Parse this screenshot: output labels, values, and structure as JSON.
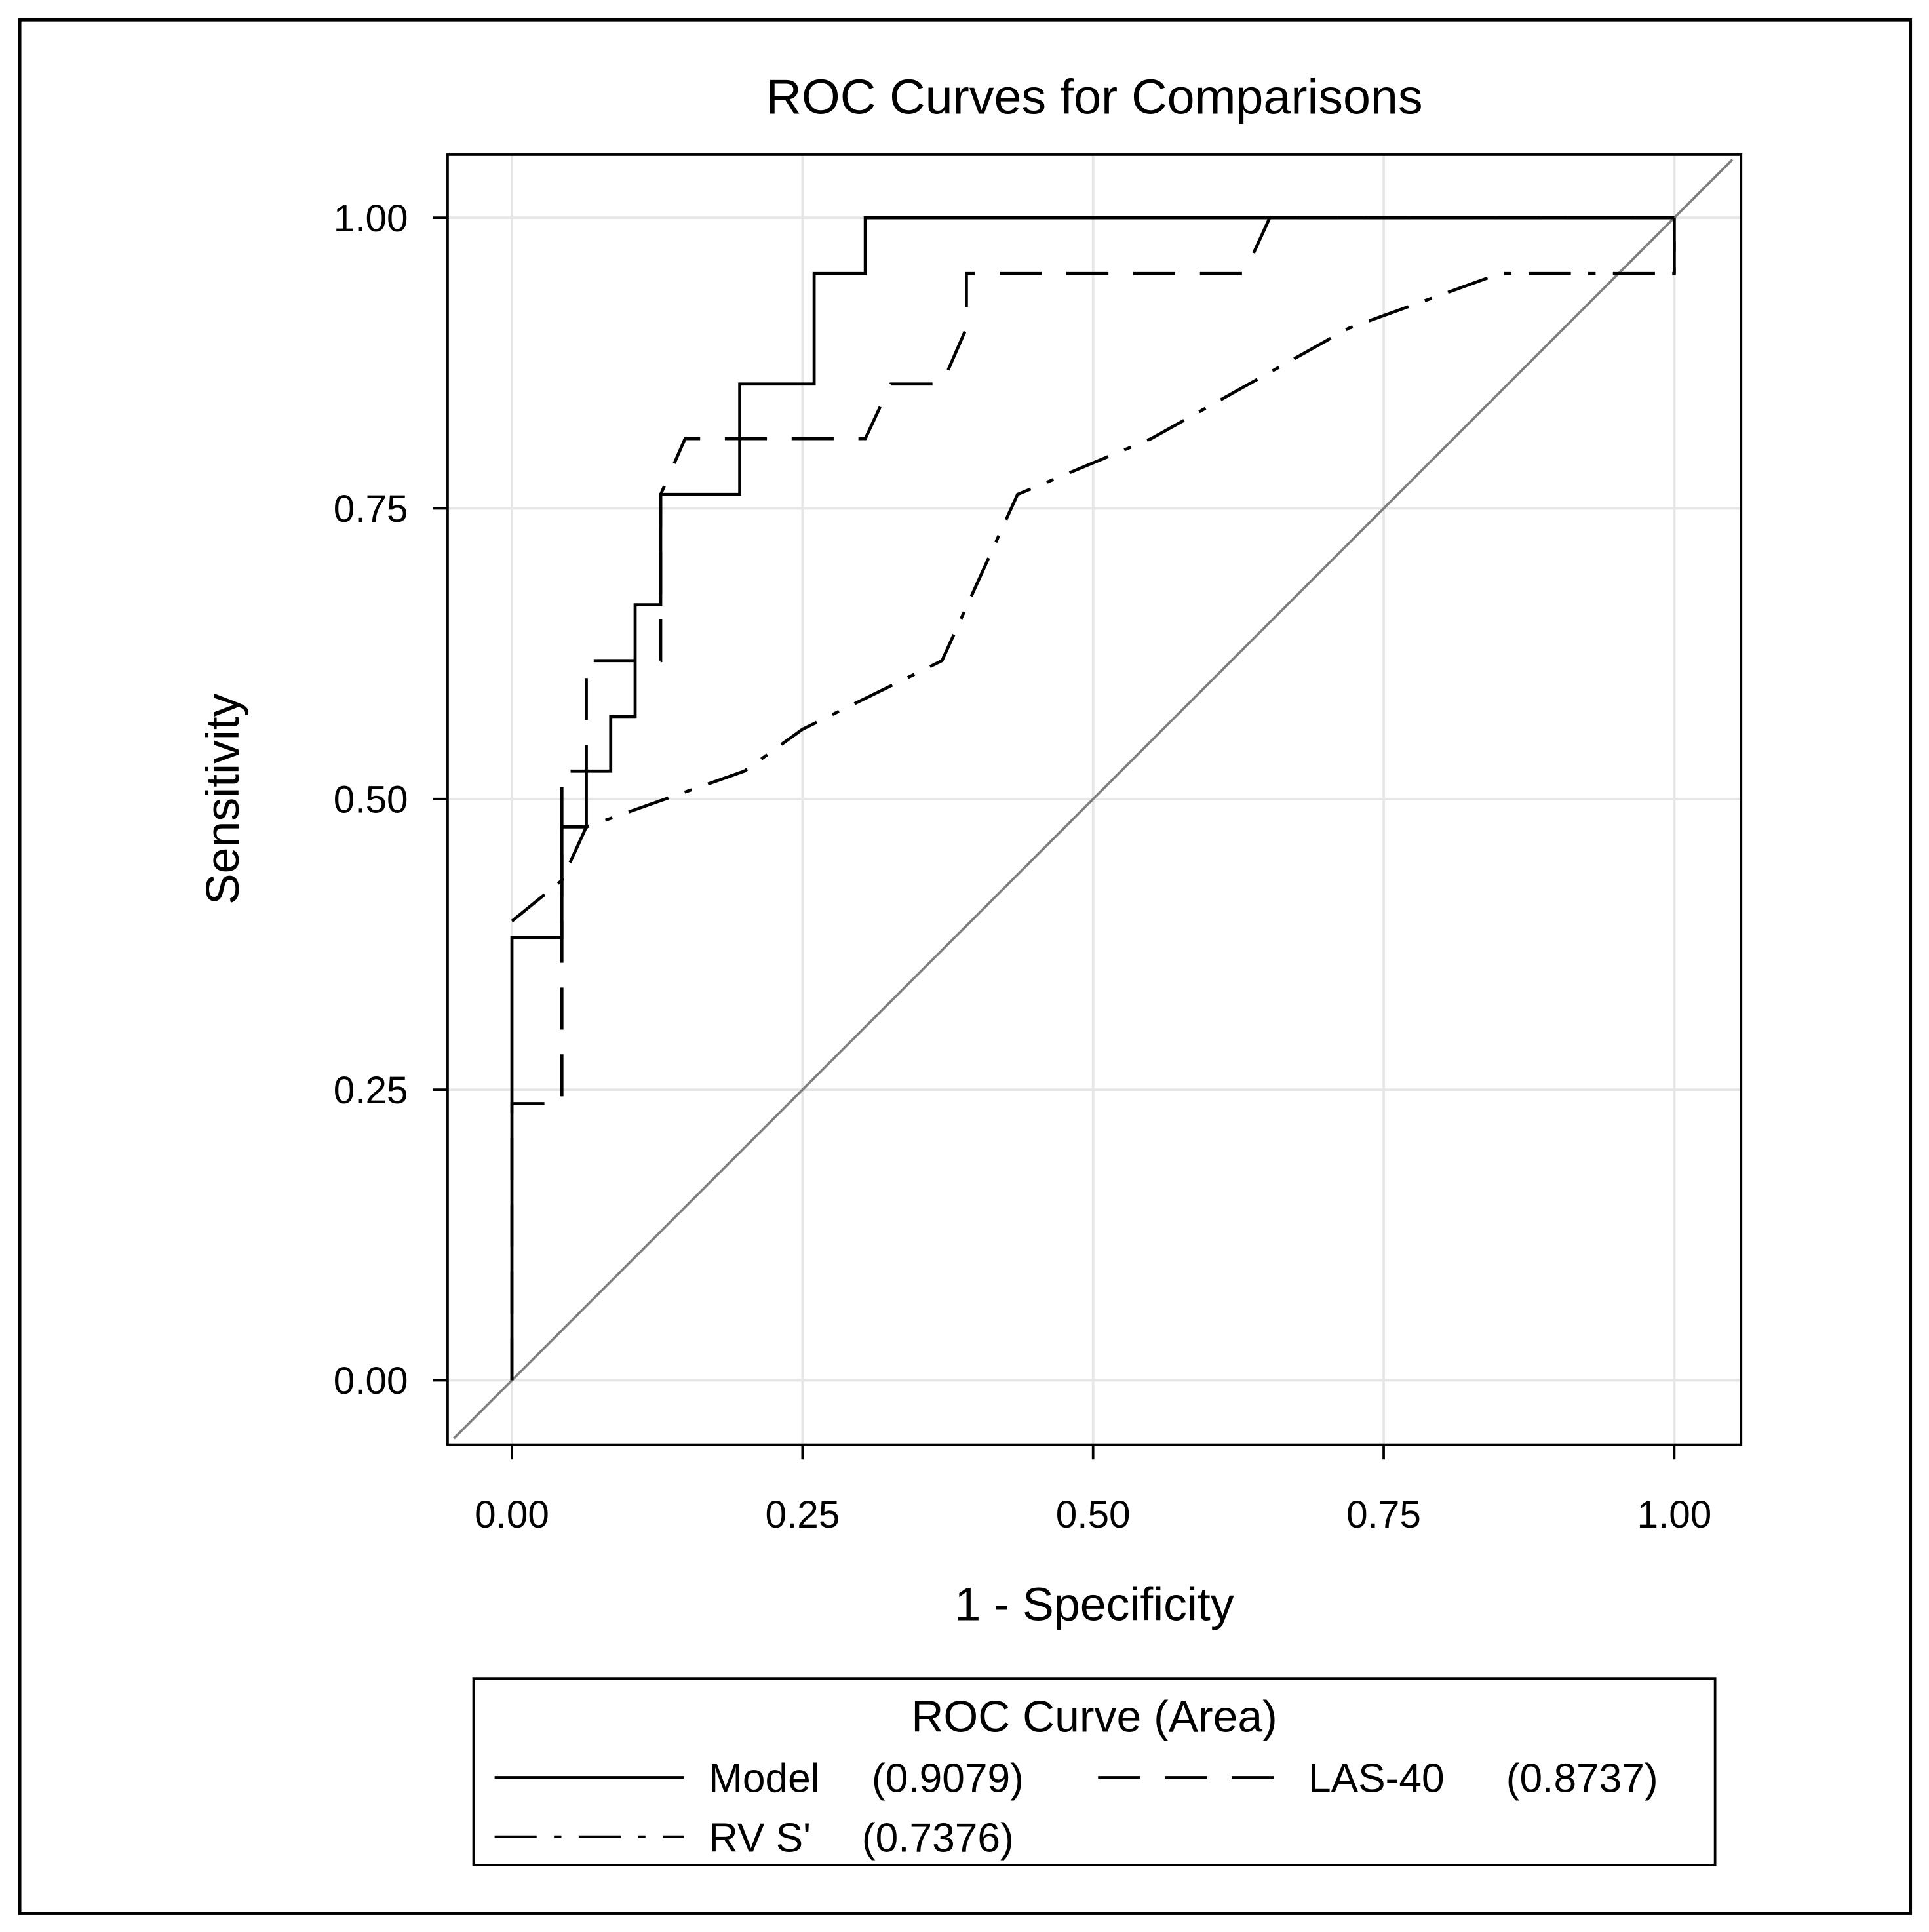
{
  "chart_data": {
    "type": "line",
    "title": "ROC Curves for Comparisons",
    "xlabel": "1 - Specificity",
    "ylabel": "Sensitivity",
    "xlim": [
      -0.05,
      1.05
    ],
    "ylim": [
      -0.05,
      1.05
    ],
    "xticks": [
      0,
      0.25,
      0.5,
      0.75,
      1
    ],
    "yticks": [
      0,
      0.25,
      0.5,
      0.75,
      1
    ],
    "xtick_labels": [
      "0.00",
      "0.25",
      "0.50",
      "0.75",
      "1.00"
    ],
    "ytick_labels": [
      "0.00",
      "0.25",
      "0.50",
      "0.75",
      "1.00"
    ],
    "grid": true,
    "legend": {
      "title": "ROC Curve (Area)",
      "placement": "bottom",
      "entries": [
        {
          "name": "Model",
          "area": "(0.9079)"
        },
        {
          "name": "LAS-40",
          "area": "(0.8737)"
        },
        {
          "name": "RV S'",
          "area": "(0.7376)"
        }
      ]
    },
    "reference_line": {
      "x": [
        0,
        1
      ],
      "y": [
        0,
        1
      ],
      "color": "#808080"
    },
    "series": [
      {
        "name": "Model",
        "style": "solid",
        "area": 0.9079,
        "x": [
          0,
          0,
          0.043,
          0.043,
          0.064,
          0.064,
          0.085,
          0.085,
          0.106,
          0.106,
          0.128,
          0.128,
          0.196,
          0.196,
          0.26,
          0.26,
          0.304,
          0.304,
          1,
          1
        ],
        "y": [
          0,
          0.381,
          0.381,
          0.476,
          0.476,
          0.524,
          0.524,
          0.571,
          0.571,
          0.667,
          0.667,
          0.762,
          0.762,
          0.857,
          0.857,
          0.952,
          0.952,
          1,
          1,
          1
        ]
      },
      {
        "name": "LAS-40",
        "style": "dash",
        "area": 0.8737,
        "x": [
          0,
          0,
          0.043,
          0.043,
          0.064,
          0.064,
          0.128,
          0.128,
          0.149,
          0.304,
          0.326,
          0.37,
          0.391,
          0.391,
          0.63,
          0.652,
          1,
          1
        ],
        "y": [
          0,
          0.238,
          0.238,
          0.524,
          0.524,
          0.619,
          0.619,
          0.762,
          0.81,
          0.81,
          0.857,
          0.857,
          0.905,
          0.952,
          0.952,
          1,
          1,
          0.952
        ]
      },
      {
        "name": "RV S'",
        "style": "dashdot",
        "area": 0.7376,
        "x": [
          0,
          0.043,
          0.064,
          0.2,
          0.25,
          0.37,
          0.435,
          0.55,
          0.72,
          0.85,
          1,
          1
        ],
        "y": [
          0.395,
          0.43,
          0.476,
          0.524,
          0.56,
          0.619,
          0.762,
          0.81,
          0.905,
          0.952,
          0.952,
          1
        ]
      }
    ]
  }
}
